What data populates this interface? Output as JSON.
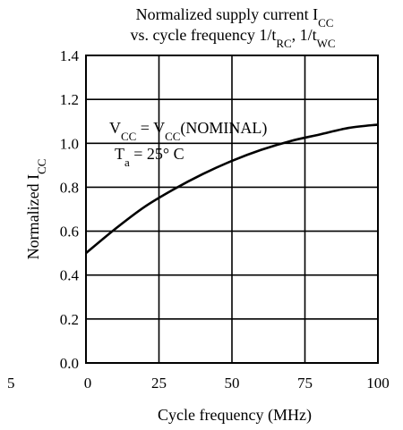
{
  "chart_data": {
    "type": "line",
    "title": {
      "line1": {
        "text": "Normalized supply current I",
        "sub": "CC"
      },
      "line2": {
        "parts": [
          {
            "text": "vs. cycle frequency 1/t",
            "sub": ""
          },
          {
            "text": "",
            "sub": "RC"
          },
          {
            "text": ", 1/t",
            "sub": ""
          },
          {
            "text": "",
            "sub": "WC"
          }
        ]
      }
    },
    "xlabel": "Cycle frequency (MHz)",
    "ylabel": {
      "text": "Normalized I",
      "sub": "CC"
    },
    "xlim": [
      0,
      100
    ],
    "ylim": [
      0.0,
      1.4
    ],
    "xticks": [
      {
        "value": 0,
        "label": "0"
      },
      {
        "value": 25,
        "label": "25"
      },
      {
        "value": 50,
        "label": "50"
      },
      {
        "value": 75,
        "label": "75"
      },
      {
        "value": 100,
        "label": "100"
      }
    ],
    "yticks": [
      {
        "value": 0.0,
        "label": "0.0"
      },
      {
        "value": 0.2,
        "label": "0.2"
      },
      {
        "value": 0.4,
        "label": "0.4"
      },
      {
        "value": 0.6,
        "label": "0.6"
      },
      {
        "value": 0.8,
        "label": "0.8"
      },
      {
        "value": 1.0,
        "label": "1.0"
      },
      {
        "value": 1.2,
        "label": "1.2"
      },
      {
        "value": 1.4,
        "label": "1.4"
      }
    ],
    "stray_tick_label": "5",
    "grid": true,
    "annotations": {
      "line1": {
        "a": "V",
        "a_sub": "CC",
        "b": " = V",
        "b_sub": "CC",
        "c": "(NOMINAL)"
      },
      "line2": {
        "a": "T",
        "a_sub": "a",
        "b": " = 25° C"
      }
    },
    "series": [
      {
        "x": [
          0,
          10,
          20,
          30,
          40,
          50,
          60,
          70,
          80,
          90,
          100
        ],
        "y": [
          0.5,
          0.61,
          0.71,
          0.79,
          0.86,
          0.92,
          0.97,
          1.01,
          1.04,
          1.07,
          1.085
        ]
      }
    ]
  }
}
